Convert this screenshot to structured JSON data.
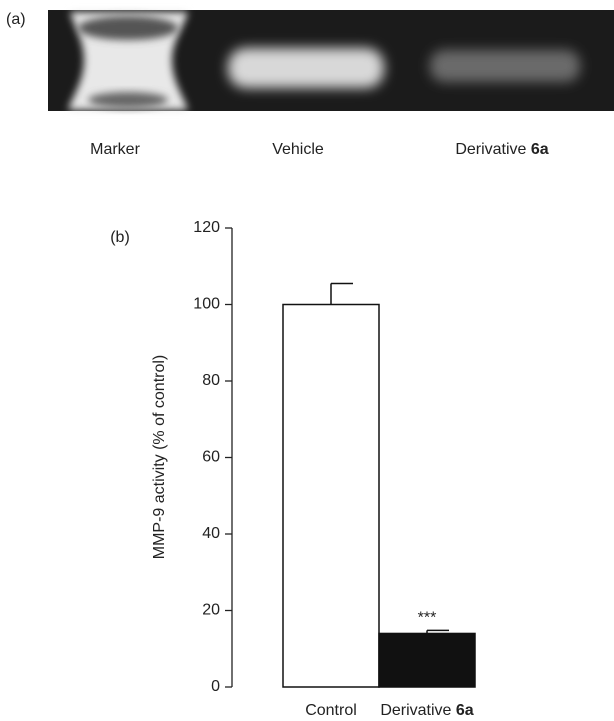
{
  "gel": {
    "panel_label": "(a)",
    "lanes": [
      "Marker",
      "Vehicle",
      "Derivative 6a"
    ]
  },
  "chart_data": {
    "type": "bar",
    "panel_label": "(b)",
    "y_label": "MMP-9 activity (% of control)",
    "categories": [
      "Control",
      "Derivative 6a"
    ],
    "series": [
      {
        "values": [
          100,
          14
        ],
        "errors": [
          5.5,
          0.8
        ],
        "colors": [
          "#ffffff",
          "#111111"
        ]
      }
    ],
    "annotations": [
      {
        "category": 1,
        "text": "***"
      }
    ],
    "ylim": [
      0,
      120
    ],
    "yticks": [
      0,
      20,
      40,
      60,
      80,
      100,
      120
    ],
    "grid": false
  }
}
